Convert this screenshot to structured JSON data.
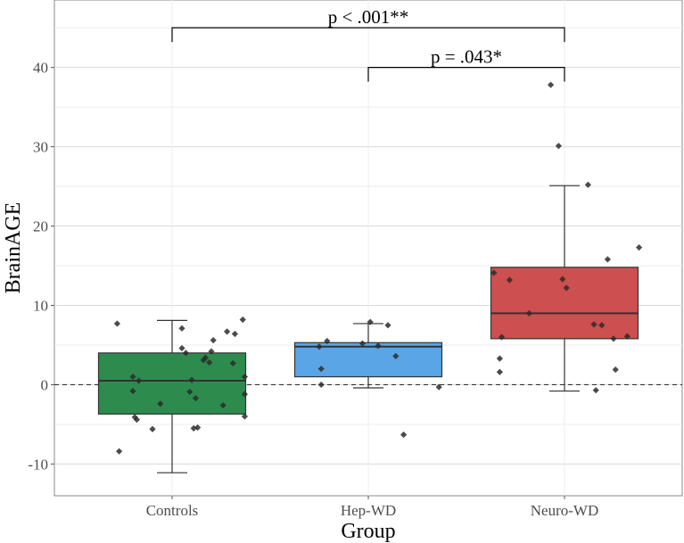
{
  "chart_data": {
    "type": "boxplot",
    "xlabel": "Group",
    "ylabel": "BrainAGE",
    "ylim": [
      -14,
      48.5
    ],
    "yticks": [
      -10,
      0,
      10,
      20,
      30,
      40
    ],
    "grid": true,
    "reference_line": {
      "y": 0,
      "style": "dashed"
    },
    "categories": [
      "Controls",
      "Hep-WD",
      "Neuro-WD"
    ],
    "colors": {
      "Controls": "#2e8b4e",
      "Hep-WD": "#5aa5e6",
      "Neuro-WD": "#cd4f4f"
    },
    "boxes": [
      {
        "group": "Controls",
        "q1": -3.7,
        "median": 0.5,
        "q3": 4.0,
        "whisker_low": -11.1,
        "whisker_high": 8.1
      },
      {
        "group": "Hep-WD",
        "q1": 1.0,
        "median": 4.8,
        "q3": 5.3,
        "whisker_low": -0.4,
        "whisker_high": 7.7
      },
      {
        "group": "Neuro-WD",
        "q1": 5.8,
        "median": 9.0,
        "q3": 14.8,
        "whisker_low": -0.8,
        "whisker_high": 25.1
      }
    ],
    "points": [
      {
        "group": "Controls",
        "x": 0.72,
        "y": 7.7
      },
      {
        "group": "Controls",
        "x": 0.73,
        "y": -8.4
      },
      {
        "group": "Controls",
        "x": 0.8,
        "y": 1.0
      },
      {
        "group": "Controls",
        "x": 0.8,
        "y": -0.8
      },
      {
        "group": "Controls",
        "x": 0.81,
        "y": -4.1
      },
      {
        "group": "Controls",
        "x": 0.82,
        "y": -4.4
      },
      {
        "group": "Controls",
        "x": 0.83,
        "y": 0.5
      },
      {
        "group": "Controls",
        "x": 0.9,
        "y": -5.6
      },
      {
        "group": "Controls",
        "x": 0.94,
        "y": -2.4
      },
      {
        "group": "Controls",
        "x": 1.05,
        "y": 7.1
      },
      {
        "group": "Controls",
        "x": 1.05,
        "y": 4.6
      },
      {
        "group": "Controls",
        "x": 1.07,
        "y": 4.0
      },
      {
        "group": "Controls",
        "x": 1.09,
        "y": -0.9
      },
      {
        "group": "Controls",
        "x": 1.1,
        "y": 0.6
      },
      {
        "group": "Controls",
        "x": 1.11,
        "y": -5.5
      },
      {
        "group": "Controls",
        "x": 1.12,
        "y": -1.7
      },
      {
        "group": "Controls",
        "x": 1.13,
        "y": -5.4
      },
      {
        "group": "Controls",
        "x": 1.16,
        "y": 3.1
      },
      {
        "group": "Controls",
        "x": 1.17,
        "y": 3.4
      },
      {
        "group": "Controls",
        "x": 1.19,
        "y": 2.8
      },
      {
        "group": "Controls",
        "x": 1.2,
        "y": 4.2
      },
      {
        "group": "Controls",
        "x": 1.21,
        "y": 5.6
      },
      {
        "group": "Controls",
        "x": 1.26,
        "y": -2.6
      },
      {
        "group": "Controls",
        "x": 1.28,
        "y": 6.7
      },
      {
        "group": "Controls",
        "x": 1.31,
        "y": 2.7
      },
      {
        "group": "Controls",
        "x": 1.32,
        "y": 6.4
      },
      {
        "group": "Controls",
        "x": 1.36,
        "y": 8.2
      },
      {
        "group": "Controls",
        "x": 1.37,
        "y": -1.2
      },
      {
        "group": "Controls",
        "x": 1.37,
        "y": -4.0
      },
      {
        "group": "Controls",
        "x": 1.37,
        "y": 1.0
      },
      {
        "group": "Hep-WD",
        "x": 1.75,
        "y": 4.8
      },
      {
        "group": "Hep-WD",
        "x": 1.76,
        "y": 2.0
      },
      {
        "group": "Hep-WD",
        "x": 1.76,
        "y": 0.0
      },
      {
        "group": "Hep-WD",
        "x": 1.79,
        "y": 5.5
      },
      {
        "group": "Hep-WD",
        "x": 1.97,
        "y": 5.2
      },
      {
        "group": "Hep-WD",
        "x": 2.01,
        "y": 7.9
      },
      {
        "group": "Hep-WD",
        "x": 2.05,
        "y": 4.9
      },
      {
        "group": "Hep-WD",
        "x": 2.1,
        "y": 7.5
      },
      {
        "group": "Hep-WD",
        "x": 2.14,
        "y": 3.6
      },
      {
        "group": "Hep-WD",
        "x": 2.18,
        "y": -6.3
      },
      {
        "group": "Hep-WD",
        "x": 2.36,
        "y": -0.3
      },
      {
        "group": "Neuro-WD",
        "x": 2.64,
        "y": 14.1
      },
      {
        "group": "Neuro-WD",
        "x": 2.67,
        "y": 3.3
      },
      {
        "group": "Neuro-WD",
        "x": 2.67,
        "y": 1.6
      },
      {
        "group": "Neuro-WD",
        "x": 2.68,
        "y": 6.0
      },
      {
        "group": "Neuro-WD",
        "x": 2.72,
        "y": 13.2
      },
      {
        "group": "Neuro-WD",
        "x": 2.82,
        "y": 9.0
      },
      {
        "group": "Neuro-WD",
        "x": 2.93,
        "y": 37.8
      },
      {
        "group": "Neuro-WD",
        "x": 2.97,
        "y": 30.1
      },
      {
        "group": "Neuro-WD",
        "x": 2.99,
        "y": 13.3
      },
      {
        "group": "Neuro-WD",
        "x": 3.01,
        "y": 12.2
      },
      {
        "group": "Neuro-WD",
        "x": 3.12,
        "y": 25.2
      },
      {
        "group": "Neuro-WD",
        "x": 3.15,
        "y": 7.6
      },
      {
        "group": "Neuro-WD",
        "x": 3.16,
        "y": -0.7
      },
      {
        "group": "Neuro-WD",
        "x": 3.19,
        "y": 7.5
      },
      {
        "group": "Neuro-WD",
        "x": 3.22,
        "y": 15.8
      },
      {
        "group": "Neuro-WD",
        "x": 3.25,
        "y": 5.8
      },
      {
        "group": "Neuro-WD",
        "x": 3.26,
        "y": 1.9
      },
      {
        "group": "Neuro-WD",
        "x": 3.32,
        "y": 6.1
      },
      {
        "group": "Neuro-WD",
        "x": 3.38,
        "y": 17.3
      }
    ],
    "annotations": [
      {
        "from": "Controls",
        "to": "Neuro-WD",
        "y": 45,
        "label": "p < .001**"
      },
      {
        "from": "Hep-WD",
        "to": "Neuro-WD",
        "y": 40,
        "label": "p = .043*"
      }
    ]
  }
}
